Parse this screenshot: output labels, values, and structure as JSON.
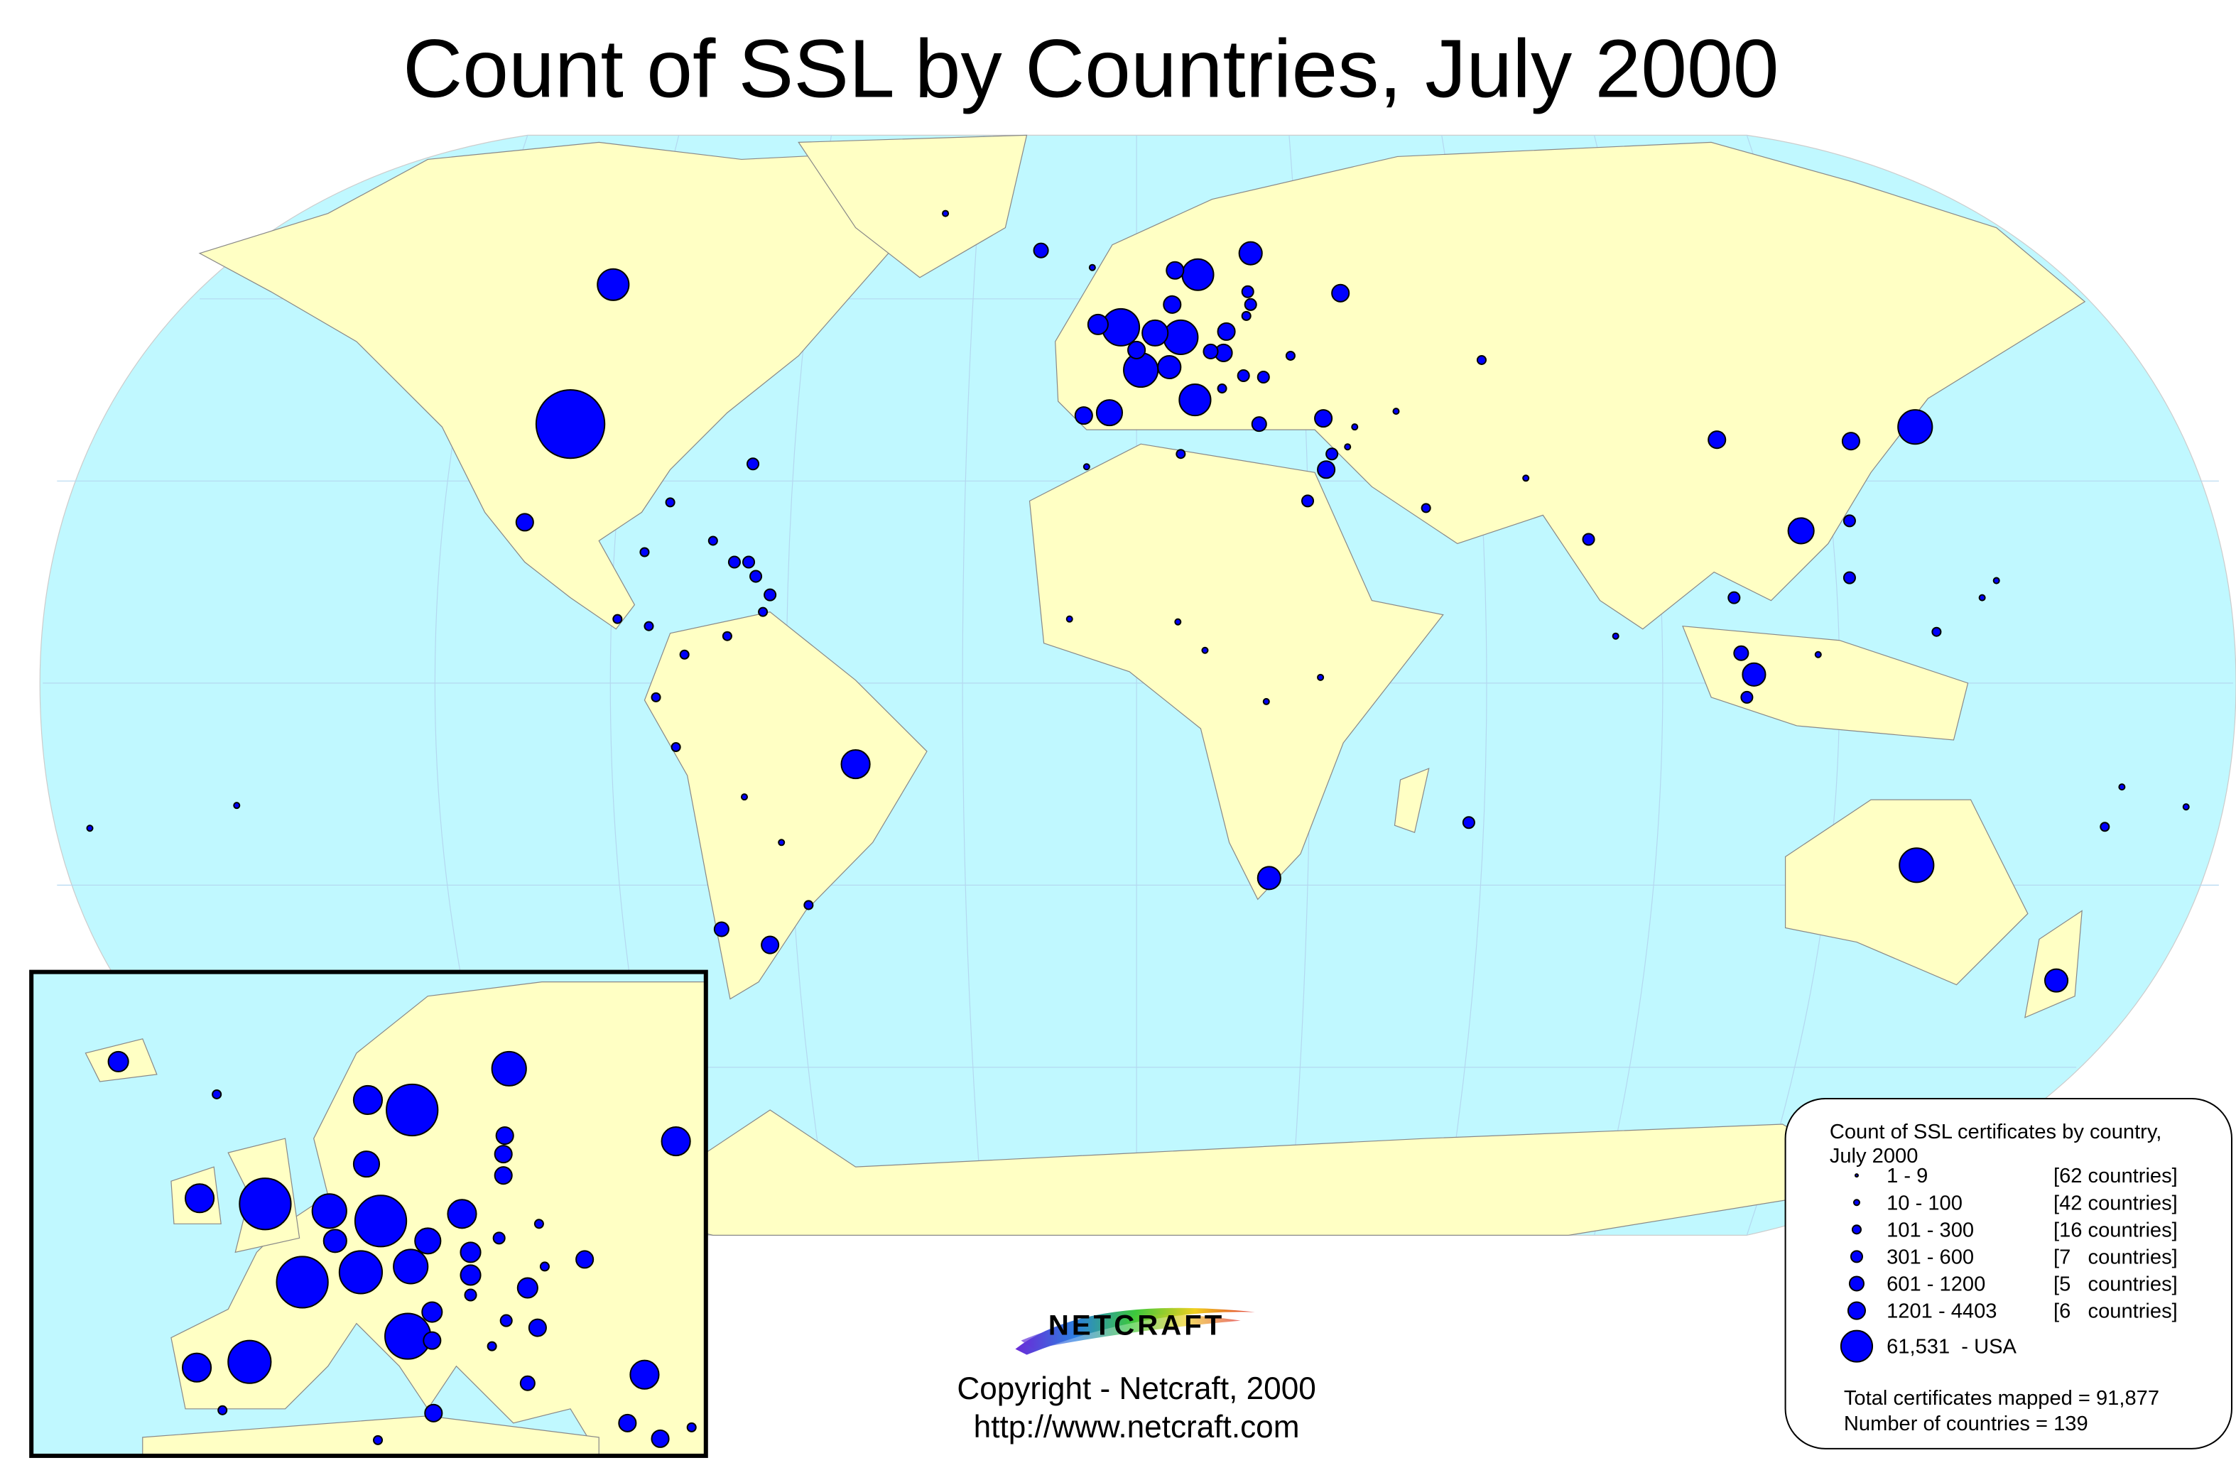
{
  "title": "Count of SSL by Countries, July 2000",
  "legend": {
    "title_lines": [
      "Count of SSL certificates by country,",
      "July 2000"
    ],
    "items": [
      {
        "range": "1 - 9",
        "countries": "[62 countries]"
      },
      {
        "range": "10 - 100",
        "countries": "[42 countries]"
      },
      {
        "range": "101 - 300",
        "countries": "[16 countries]"
      },
      {
        "range": "301 - 600",
        "countries": "[7   countries]"
      },
      {
        "range": "601 - 1200",
        "countries": "[5   countries]"
      },
      {
        "range": "1201 - 4403",
        "countries": "[6   countries]"
      },
      {
        "range": "61,531  - USA"
      }
    ],
    "total": "Total certificates mapped = 91,877",
    "country_count": "Number of countries = 139"
  },
  "logo": "NETCRAFT",
  "copyright": "Copyright - Netcraft, 2000",
  "url": "http://www.netcraft.com"
}
